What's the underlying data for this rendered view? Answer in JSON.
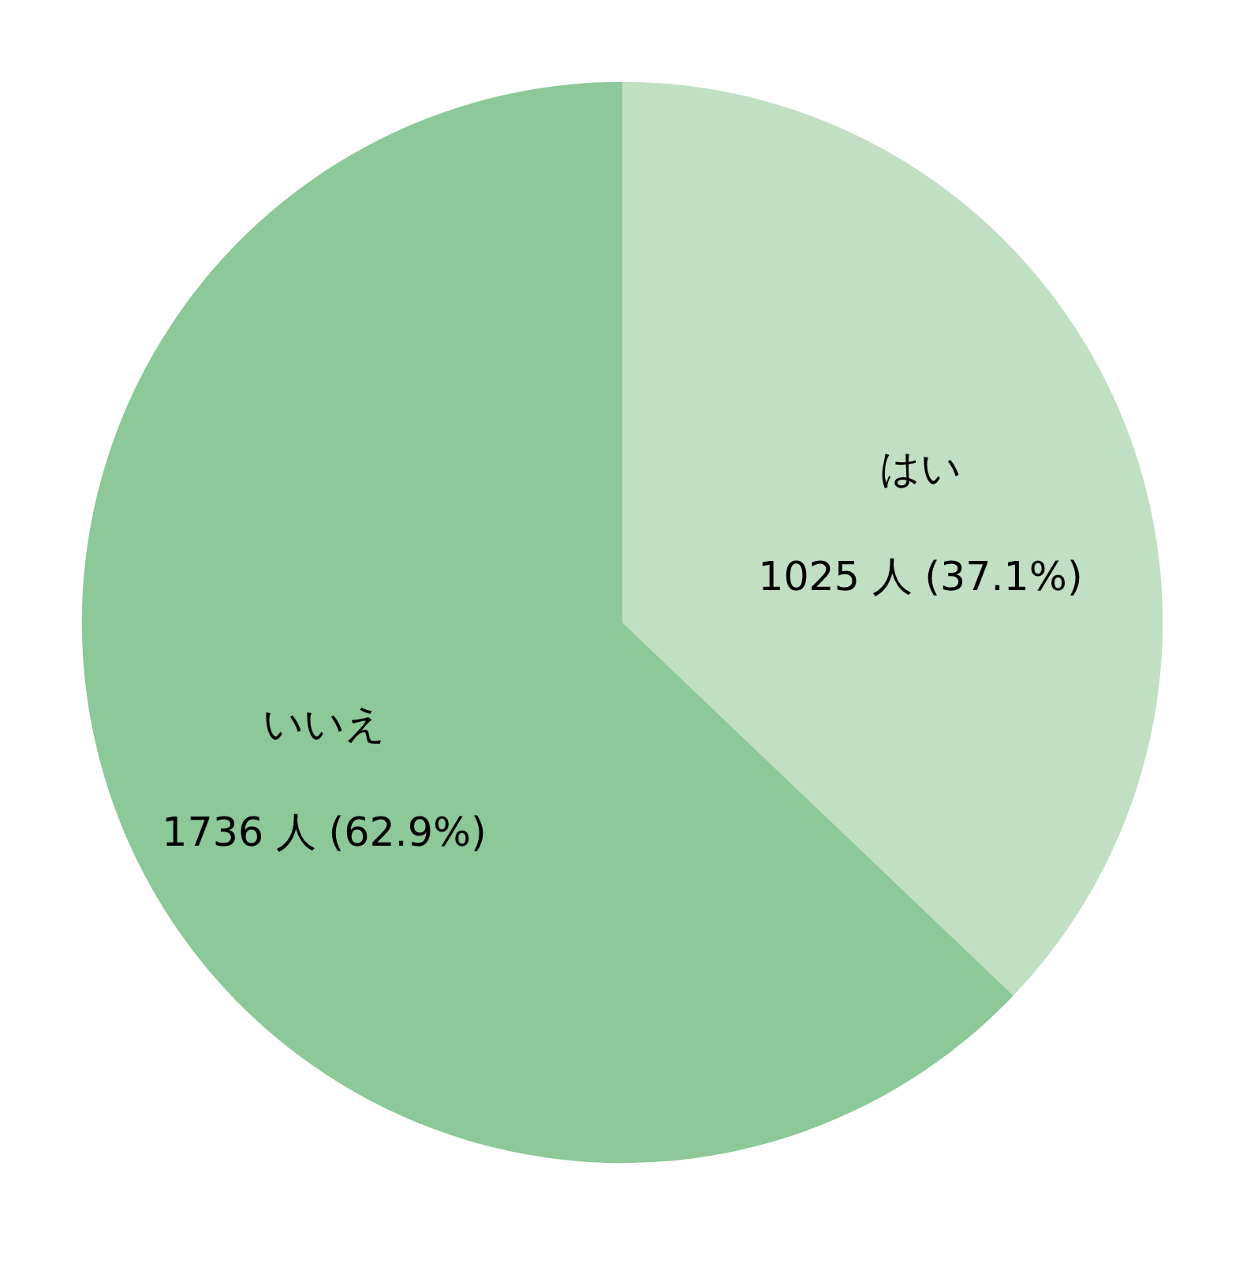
{
  "chart_data": {
    "type": "pie",
    "categories": [
      "はい",
      "いいえ"
    ],
    "values": [
      1025,
      1736
    ],
    "colors": [
      "#c0dfc3",
      "#8cc898"
    ],
    "value_labels": [
      "1025 人 (37.1%)",
      "1736 人 (62.9%)"
    ]
  }
}
